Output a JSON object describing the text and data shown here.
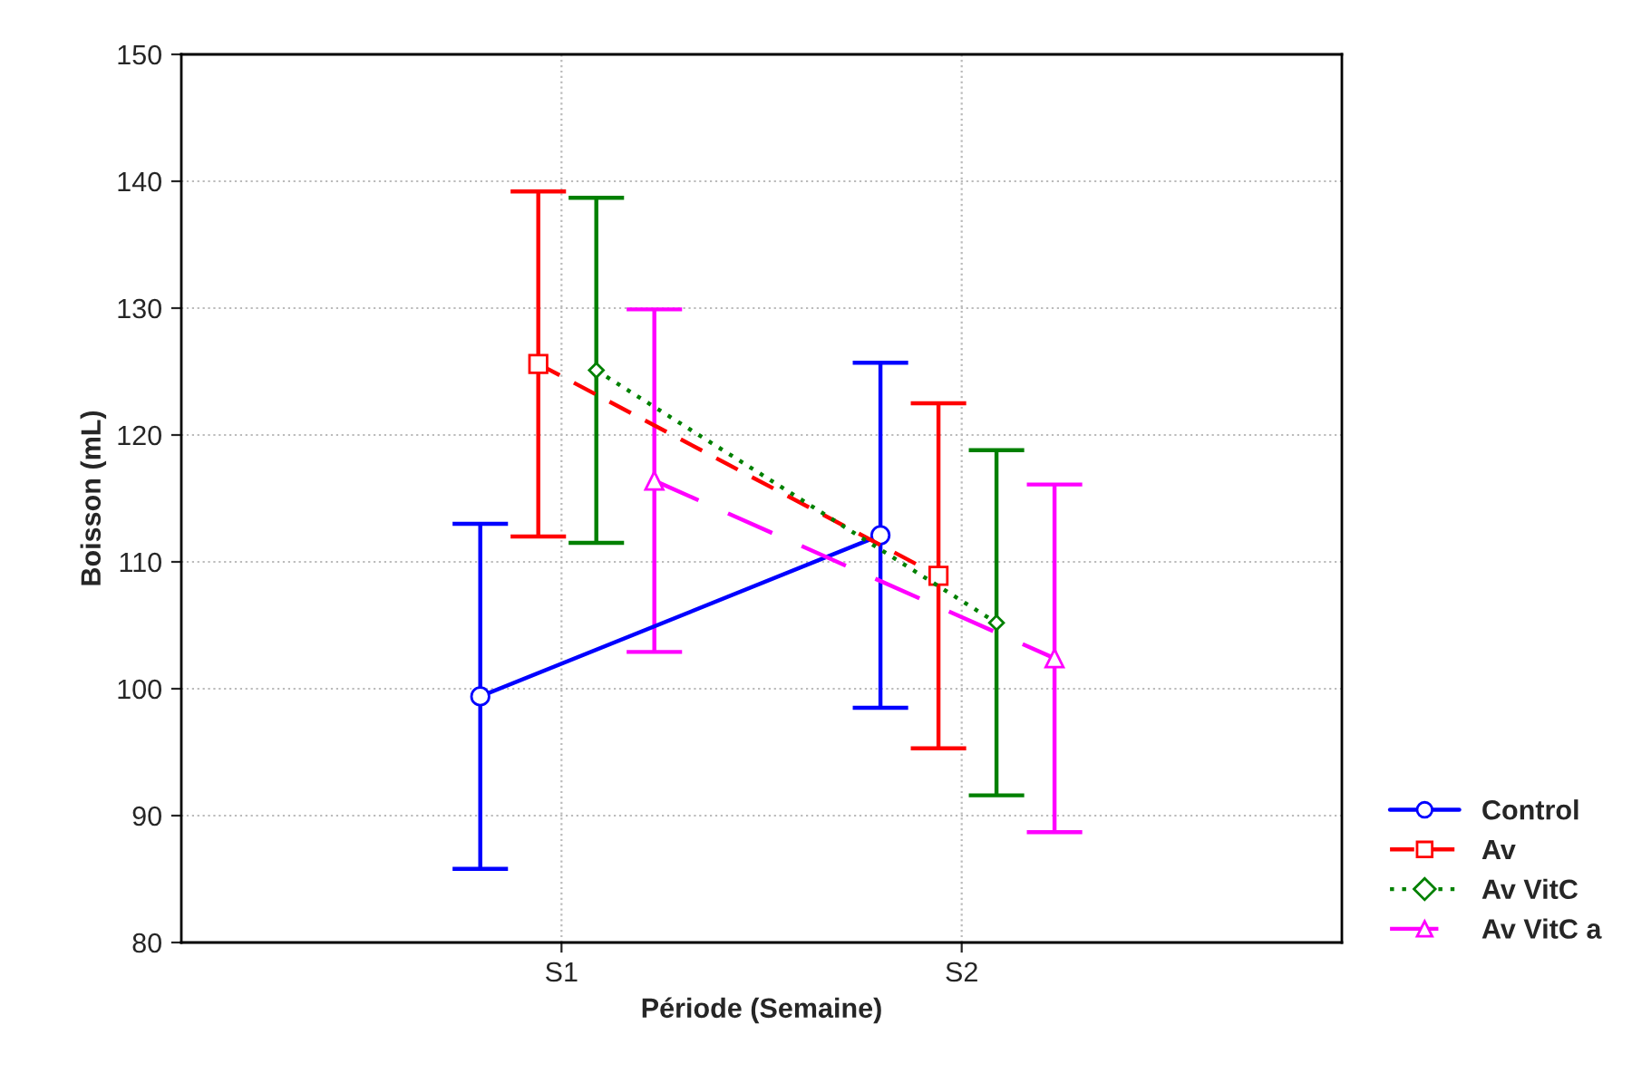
{
  "chart_data": {
    "type": "line",
    "xlabel": "Période (Semaine)",
    "ylabel": "Boisson (mL)",
    "categories": [
      "S1",
      "S2"
    ],
    "ylim": [
      80,
      150
    ],
    "yticks": [
      80,
      90,
      100,
      110,
      120,
      130,
      140,
      150
    ],
    "grid": true,
    "legend": "bottom right",
    "series": [
      {
        "name": "Control",
        "color": "#0000ff",
        "values": [
          99.4,
          112.1
        ],
        "errors": [
          13.6,
          13.6
        ],
        "marker": "circle",
        "line_style": "solid"
      },
      {
        "name": "Av",
        "color": "#ff0000",
        "values": [
          125.6,
          108.9
        ],
        "errors": [
          13.6,
          13.6
        ],
        "marker": "square",
        "line_style": "dashed"
      },
      {
        "name": "Av VitC",
        "color": "#008000",
        "values": [
          125.1,
          105.2
        ],
        "errors": [
          13.6,
          13.6
        ],
        "marker": "diamond",
        "line_style": "dotted"
      },
      {
        "name": "Av VitC a",
        "color": "#ff00ff",
        "values": [
          116.4,
          102.4
        ],
        "errors": [
          13.5,
          13.7
        ],
        "marker": "triangle",
        "line_style": "dashed"
      }
    ]
  }
}
